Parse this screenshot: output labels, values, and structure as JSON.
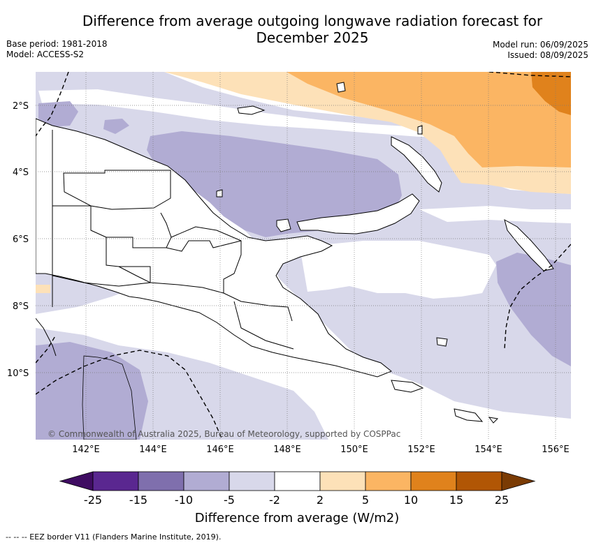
{
  "title": {
    "line1": "Difference from average outgoing longwave radiation forecast for",
    "line2": "December 2025"
  },
  "meta_left": {
    "base_period": "Base period: 1981-2018",
    "model": "Model: ACCESS-S2"
  },
  "meta_right": {
    "model_run": "Model run: 06/09/2025",
    "issued": "Issued: 08/09/2025"
  },
  "map": {
    "region": "Papua New Guinea",
    "lon_ticks": [
      "142°E",
      "144°E",
      "146°E",
      "148°E",
      "150°E",
      "152°E",
      "154°E",
      "156°E"
    ],
    "lat_ticks": [
      "2°S",
      "4°S",
      "6°S",
      "8°S",
      "10°S"
    ],
    "copyright": "© Commonwealth of Australia 2025, Bureau of Meteorology, supported by COSPPac",
    "colors": {
      "bin_-5_-2": "#d8d8ea",
      "bin_-10_-5": "#b1acd3",
      "bin_2_5": "#fde1b8",
      "bin_5_10": "#fbb563",
      "bin_10_15": "#e0821c",
      "land": "#ffffff",
      "coastline": "#000000"
    }
  },
  "colorbar": {
    "labels": [
      "-25",
      "-15",
      "-10",
      "-5",
      "-2",
      "2",
      "5",
      "10",
      "15",
      "25"
    ],
    "colors": [
      "#3f0c62",
      "#5a2790",
      "#7f6fad",
      "#b1acd3",
      "#d8d8ea",
      "#ffffff",
      "#fde1b8",
      "#fbb563",
      "#e0821c",
      "#b15605",
      "#7a3b04"
    ],
    "label": "Difference from average (W/m2)"
  },
  "footnote": "--  --  -- EEZ border V11 (Flanders Marine Institute, 2019)."
}
